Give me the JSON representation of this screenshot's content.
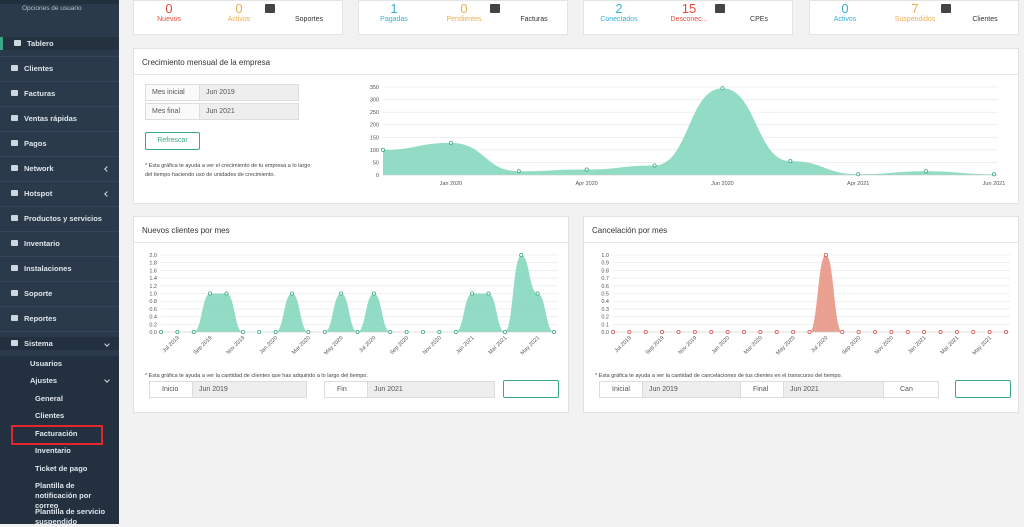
{
  "sidebar": {
    "user_menu": "Opciones de usuario",
    "menu": [
      "Tablero",
      "Clientes",
      "Facturas",
      "Ventas rápidas",
      "Pagos",
      "Network",
      "Hotspot",
      "Productos y servicios",
      "Inventario",
      "Instalaciones",
      "Soporte",
      "Reportes",
      "Sistema"
    ],
    "sistema": [
      "Usuarios",
      "Ajustes"
    ],
    "ajustes": [
      "General",
      "Clientes",
      "Facturación",
      "Inventario",
      "Ticket de pago",
      "Plantilla de notificación por correo",
      "Plantilla de servicio suspendido"
    ]
  },
  "cards": [
    {
      "items": [
        {
          "value": 0,
          "label": "Nuevos",
          "color": "#e74c3c"
        },
        {
          "value": 0,
          "label": "Activos",
          "color": "#f0ad4e"
        }
      ],
      "icon_label": "Soportes"
    },
    {
      "items": [
        {
          "value": 1,
          "label": "Pagadas",
          "color": "#3bafda"
        },
        {
          "value": 0,
          "label": "Pendientes",
          "color": "#f0ad4e"
        }
      ],
      "icon_label": "Facturas"
    },
    {
      "items": [
        {
          "value": 2,
          "label": "Conectados",
          "color": "#3bafda"
        },
        {
          "value": 15,
          "label": "Desconec...",
          "color": "#e74c3c"
        }
      ],
      "icon_label": "CPEs"
    },
    {
      "items": [
        {
          "value": 0,
          "label": "Activos",
          "color": "#3bafda"
        },
        {
          "value": 7,
          "label": "Suspendidos",
          "color": "#f0ad4e"
        }
      ],
      "icon_label": "Clientes"
    }
  ],
  "growth_chart": {
    "type": "area",
    "title": "Crecimiento mensual de la empresa",
    "fields": [
      {
        "label": "Mes inicial",
        "value": "Jun 2019"
      },
      {
        "label": "Mes final",
        "value": "Jun 2021"
      }
    ],
    "button": "Refrescar",
    "note": "* Esta gráfica te ayuda a ver el crecimiento de tu empresa a lo largo del tiempo haciendo uso de unidades de crecimiento.",
    "categories": [
      null,
      "Jan 2020",
      null,
      "Apr 2020",
      null,
      "Jun 2020",
      null,
      "Apr 2021",
      null,
      "Jun 2021"
    ],
    "values": [
      100,
      128,
      15,
      22,
      38,
      345,
      55,
      3,
      15,
      3
    ],
    "ylim": [
      0,
      350
    ],
    "yticks": [
      0,
      50,
      100,
      150,
      200,
      250,
      300,
      350
    ],
    "color": "#7fd6bb",
    "point_color": "#3aa887"
  },
  "new_clients_chart": {
    "type": "area",
    "title": "Nuevos clientes por mes",
    "categories": [
      null,
      "Jul 2019",
      null,
      "Sep 2019",
      null,
      "Nov 2019",
      null,
      "Jan 2020",
      null,
      "Mar 2020",
      null,
      "May 2020",
      null,
      "Jul 2020",
      null,
      "Sep 2020",
      null,
      "Nov 2020",
      null,
      "Jan 2021",
      null,
      "Mar 2021",
      null,
      "May 2021",
      null
    ],
    "values": [
      0,
      0,
      0,
      1,
      1,
      0,
      0,
      0,
      1,
      0,
      0,
      1,
      0,
      1,
      0,
      0,
      0,
      0,
      0,
      1,
      1,
      0,
      2,
      1,
      0
    ],
    "ylim": [
      0,
      2
    ],
    "yticks": [
      {
        "value": 0,
        "label": "0.0"
      },
      0.2,
      0.4,
      0.6,
      0.8,
      {
        "value": 1,
        "label": "1.0"
      },
      1.2,
      1.4,
      1.6,
      1.8,
      {
        "value": 2,
        "label": "2.0"
      }
    ],
    "color": "#7fd6bb",
    "point_color": "#3aa887",
    "note": "* Esta gráfica te ayuda a ver la cantidad de clientes que has adquirido a lo largo del tiempo.",
    "filters": [
      {
        "label": "Inicio",
        "value": "Jun 2019"
      },
      {
        "label": "Fin",
        "value": "Jun 2021"
      }
    ]
  },
  "cancel_chart": {
    "type": "area",
    "title": "Cancelación por mes",
    "categories": [
      null,
      "Jul 2019",
      null,
      "Sep 2019",
      null,
      "Nov 2019",
      null,
      "Jan 2020",
      null,
      "Mar 2020",
      null,
      "May 2020",
      null,
      "Jul 2020",
      null,
      "Sep 2020",
      null,
      "Nov 2020",
      null,
      "Jan 2021",
      null,
      "Mar 2021",
      null,
      "May 2021",
      null
    ],
    "values": [
      0,
      0,
      0,
      0,
      0,
      0,
      0,
      0,
      0,
      0,
      0,
      0,
      0,
      1,
      0,
      0,
      0,
      0,
      0,
      0,
      0,
      0,
      0,
      0,
      0
    ],
    "ylim": [
      0,
      1
    ],
    "yticks": [
      {
        "value": 0,
        "label": "0.0"
      },
      0.1,
      0.2,
      0.3,
      0.4,
      0.5,
      0.6,
      0.7,
      0.8,
      0.9,
      {
        "value": 1,
        "label": "1.0"
      }
    ],
    "color": "#e8917f",
    "point_color": "#d9534f",
    "note": "* Esta gráfica te ayuda a ver la cantidad de cancelaciones de tus clientes en el transcurso del tiempo.",
    "filters": [
      {
        "label": "Inicial",
        "value": "Jun 2019"
      },
      {
        "label": "Final",
        "value": "Jun 2021"
      }
    ],
    "button": "Can"
  }
}
